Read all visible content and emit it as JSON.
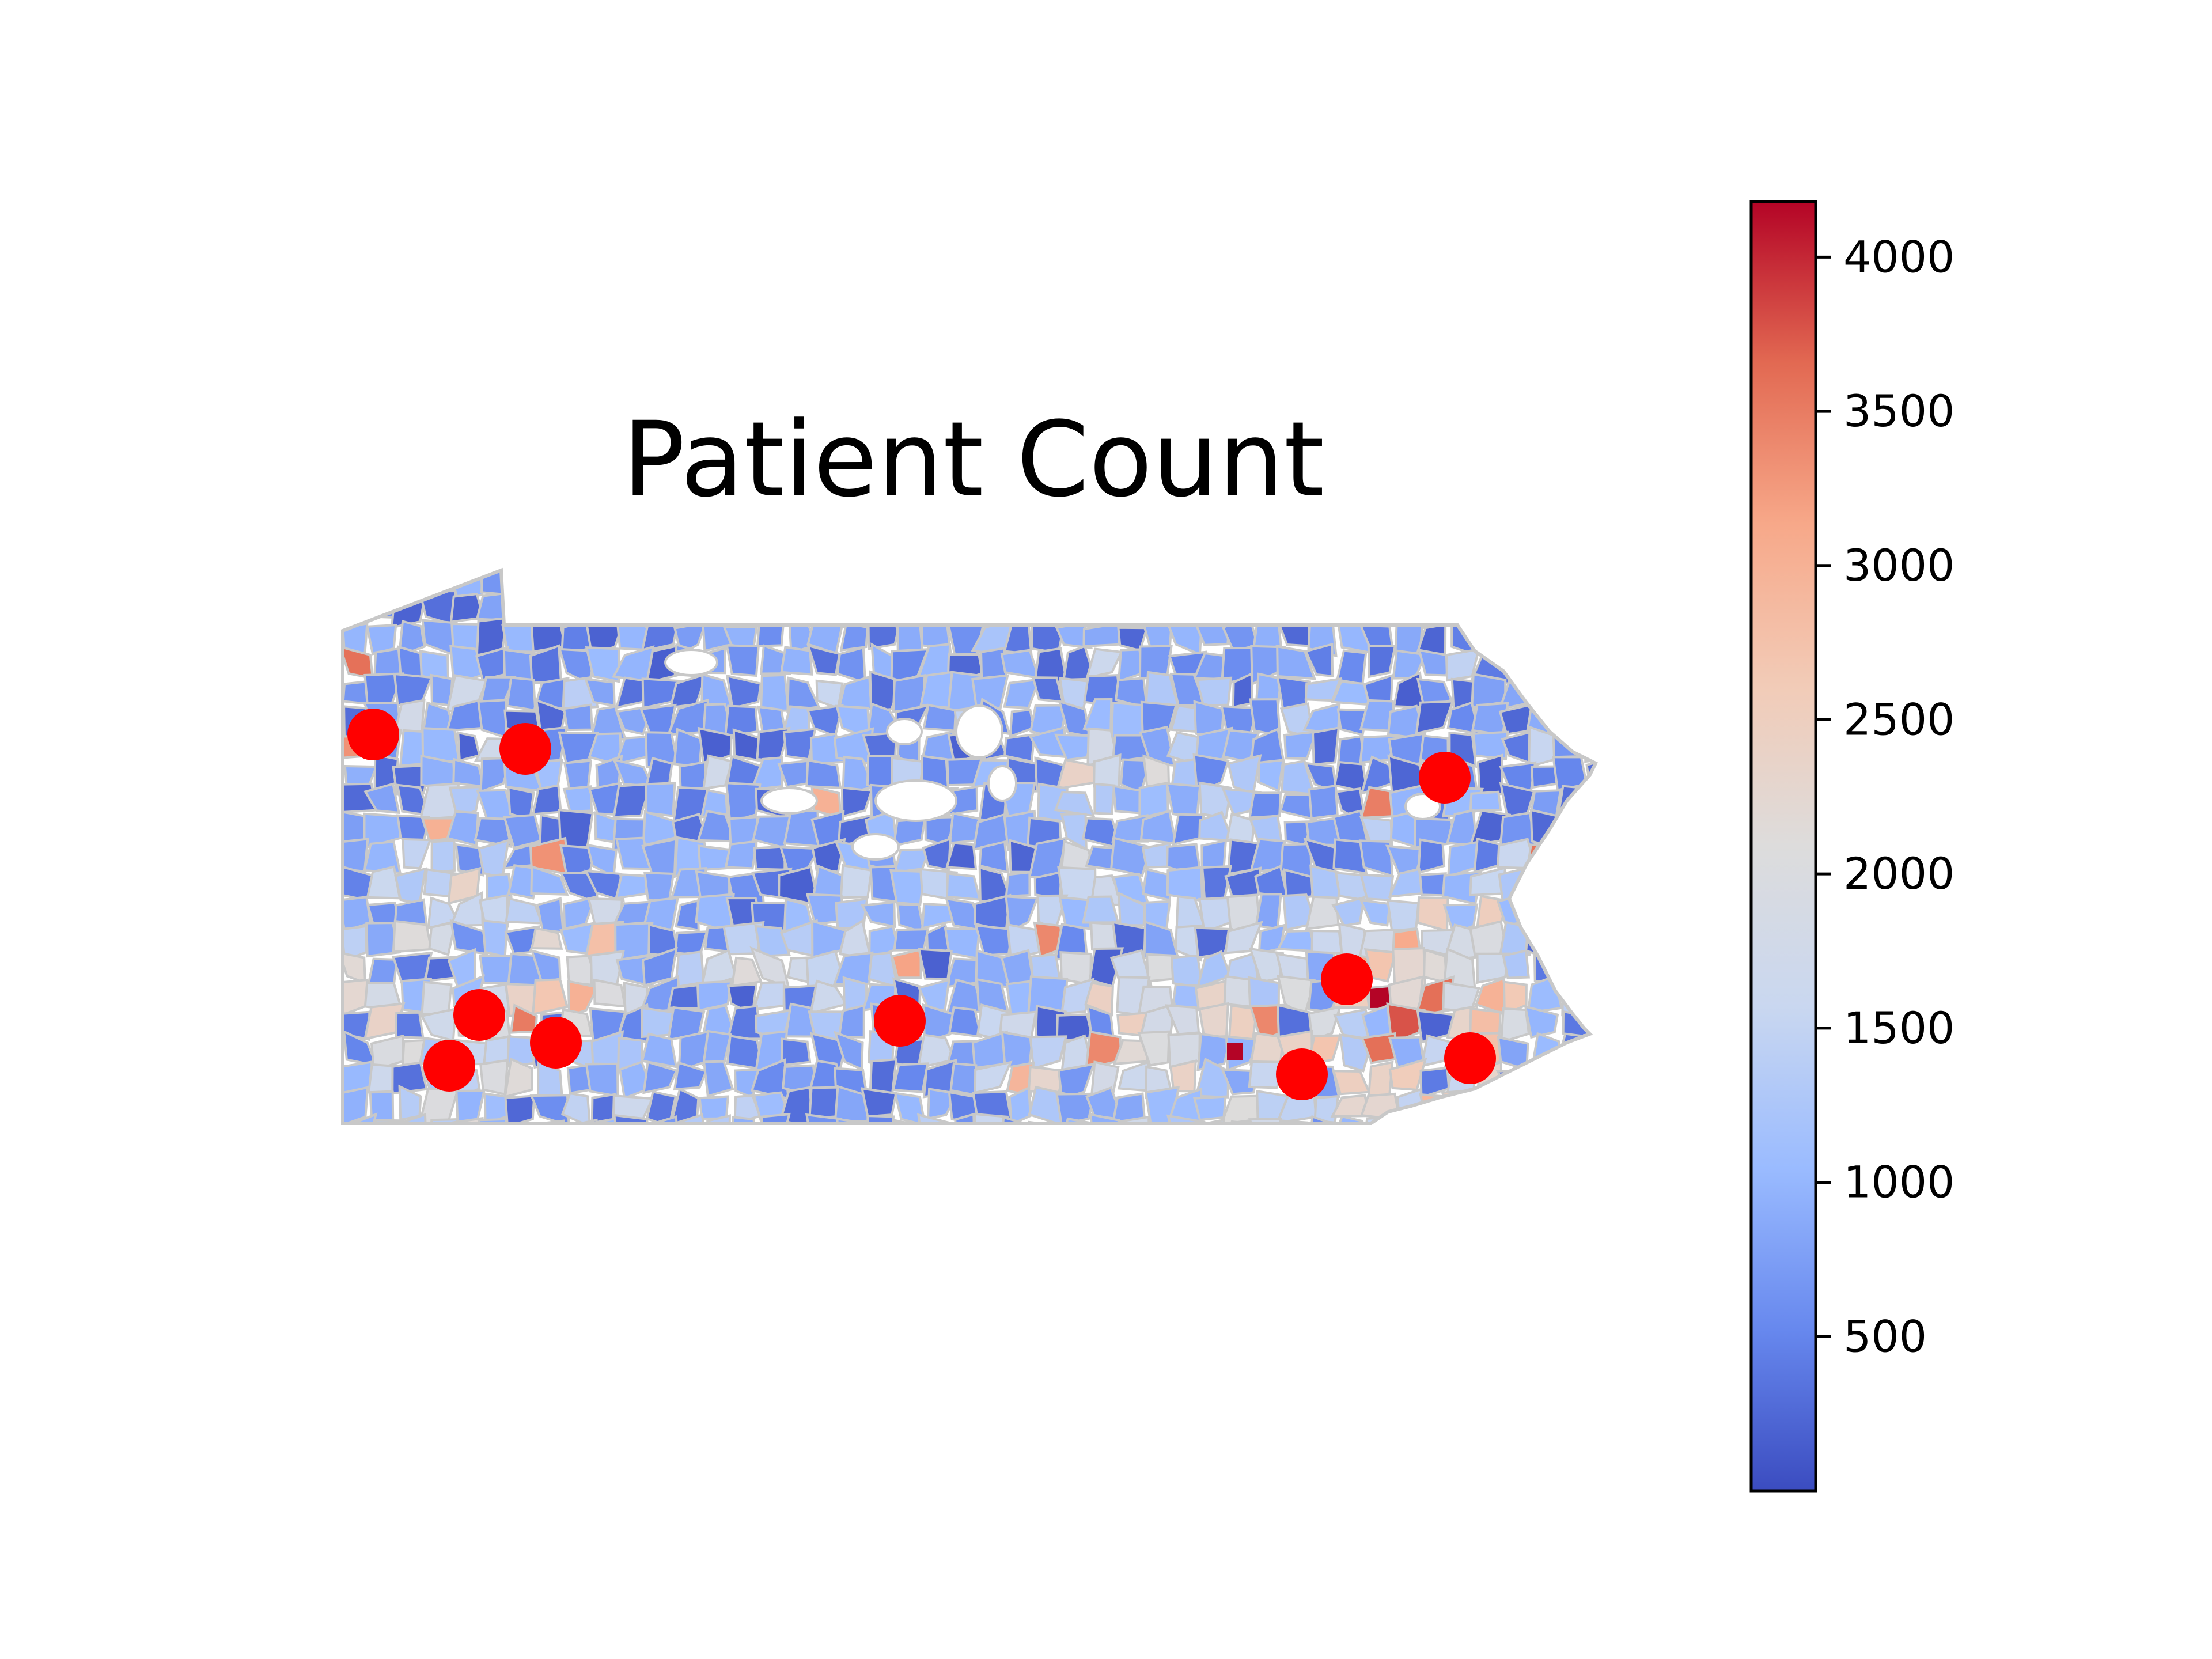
{
  "title": "Patient Count",
  "colorbar": {
    "min": 0,
    "max": 4180,
    "ticks": [
      {
        "value": 500,
        "label": "500"
      },
      {
        "value": 1000,
        "label": "1000"
      },
      {
        "value": 1500,
        "label": "1500"
      },
      {
        "value": 2000,
        "label": "2000"
      },
      {
        "value": 2500,
        "label": "2500"
      },
      {
        "value": 3000,
        "label": "3000"
      },
      {
        "value": 3500,
        "label": "3500"
      },
      {
        "value": 4000,
        "label": "4000"
      }
    ],
    "colormap": "coolwarm",
    "stops": [
      "#3b4cc0",
      "#6788ee",
      "#9abbff",
      "#c9d7f0",
      "#dddcdc",
      "#f2cbb7",
      "#f7a889",
      "#e26952",
      "#b40426"
    ]
  },
  "map": {
    "region": "Pennsylvania",
    "boundary_color": "#c8c8c8",
    "marker_color": "#ff0000"
  }
}
